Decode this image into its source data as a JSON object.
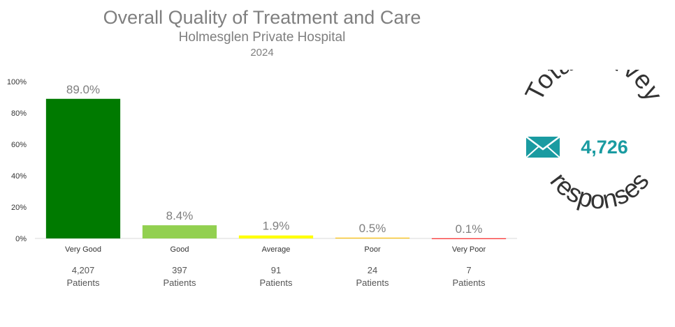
{
  "chart_data": {
    "type": "bar",
    "title": "Overall Quality of Treatment and Care",
    "subtitle": "Holmesglen Private Hospital",
    "subtitle2": "2024",
    "categories": [
      "Very Good",
      "Good",
      "Average",
      "Poor",
      "Very Poor"
    ],
    "values": [
      89.0,
      8.4,
      1.9,
      0.5,
      0.1
    ],
    "value_labels": [
      "89.0%",
      "8.4%",
      "1.9%",
      "0.5%",
      "0.1%"
    ],
    "counts": [
      "4,207",
      "397",
      "91",
      "24",
      "7"
    ],
    "count_unit": "Patients",
    "colors": [
      "#007a00",
      "#92d050",
      "#ffff00",
      "#ffc000",
      "#ff0000"
    ],
    "ylim": [
      0,
      100
    ],
    "yticks": [
      0,
      20,
      40,
      60,
      80,
      100
    ],
    "ytick_labels": [
      "0%",
      "20%",
      "40%",
      "60%",
      "80%",
      "100%"
    ],
    "grid": false,
    "legend": "none"
  },
  "badge": {
    "top_text": "Total survey",
    "value": "4,726",
    "bottom_text": "responses",
    "icon": "envelope-icon",
    "accent": "#1a9ba1"
  }
}
